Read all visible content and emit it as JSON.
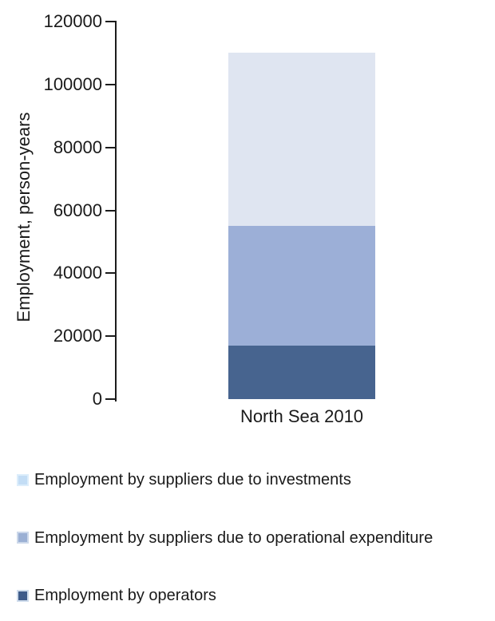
{
  "chart_data": {
    "type": "bar",
    "stacked": true,
    "categories": [
      "North Sea 2010"
    ],
    "series": [
      {
        "id": "operators",
        "name": "Employment by operators",
        "values": [
          17000
        ],
        "color": "#47648f"
      },
      {
        "id": "opex",
        "name": "Employment by suppliers due to operational expenditure",
        "values": [
          38000
        ],
        "color": "#9cafd7"
      },
      {
        "id": "investments",
        "name": "Employment by suppliers due to investments",
        "values": [
          55000
        ],
        "color": "#dfe5f1"
      }
    ],
    "xlabel": "",
    "ylabel": "Employment, person-years",
    "ylim": [
      0,
      120000
    ],
    "yticks": [
      0,
      20000,
      40000,
      60000,
      80000,
      100000,
      120000
    ],
    "grid": false,
    "legend_position": "bottom",
    "legend": [
      {
        "series_id": "investments",
        "label": "Employment by suppliers due to investments",
        "fill": "#c3ddf5",
        "border": "#dcedfb"
      },
      {
        "series_id": "opex",
        "label": "Employment by suppliers due to operational expenditure",
        "fill": "#9bb0d4",
        "border": "#ccd8ea"
      },
      {
        "series_id": "operators",
        "label": "Employment by operators",
        "fill": "#3f5c8a",
        "border": "#cfdcec"
      }
    ],
    "axis_color": "#1c1c1c",
    "text_color": "#1a1a1a",
    "background": "#ffffff"
  }
}
